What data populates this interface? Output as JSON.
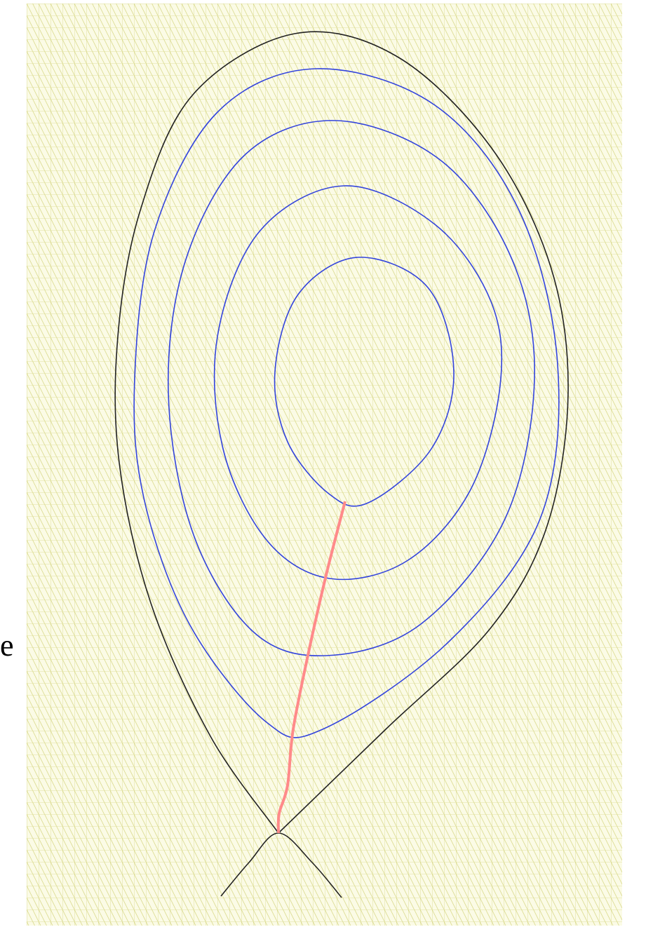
{
  "label": "e"
}
